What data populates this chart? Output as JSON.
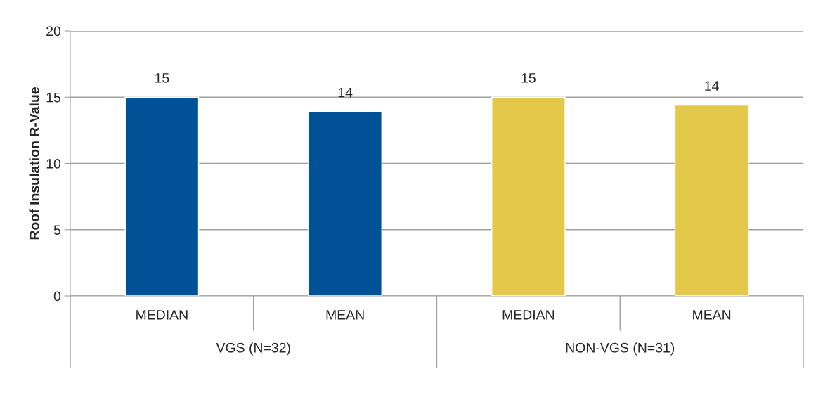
{
  "chart_data": {
    "type": "bar",
    "ylabel": "Roof Insulation R-Value",
    "categories": [
      "MEDIAN",
      "MEAN",
      "MEDIAN",
      "MEAN"
    ],
    "values": [
      15,
      13.9,
      15,
      14.4
    ],
    "colors": [
      "#005196",
      "#005196",
      "#e4c84a",
      "#e4c84a"
    ],
    "value_labels": [
      "15",
      "14",
      "15",
      "14"
    ],
    "annotations": [
      "VGS (N=32)",
      "NON-VGS (N=31)"
    ],
    "ylim": [
      0,
      20
    ],
    "yticks": [
      0,
      5,
      10,
      15,
      20
    ],
    "grid": "y",
    "legend": false
  }
}
